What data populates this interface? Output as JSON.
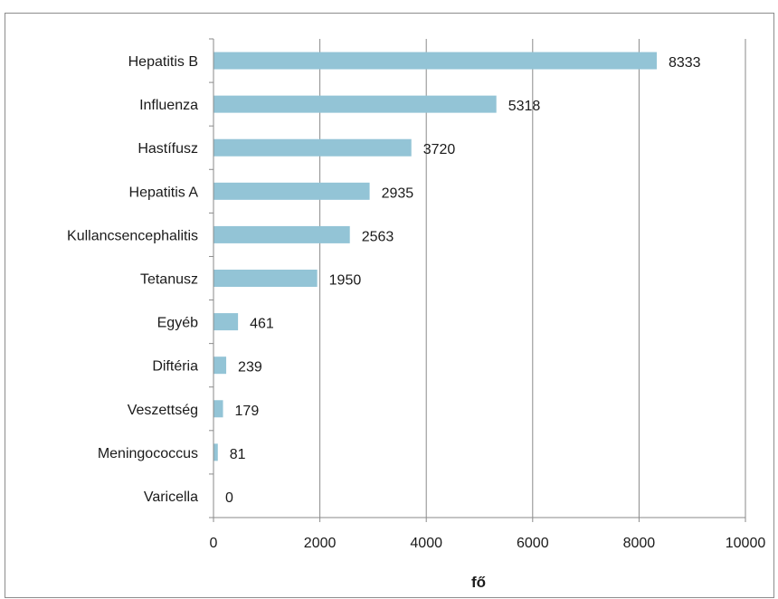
{
  "chart_data": {
    "type": "bar",
    "orientation": "horizontal",
    "categories": [
      "Hepatitis B",
      "Influenza",
      "Hastífusz",
      "Hepatitis A",
      "Kullancsencephalitis",
      "Tetanusz",
      "Egyéb",
      "Diftéria",
      "Veszettség",
      "Meningococcus",
      "Varicella"
    ],
    "values": [
      8333,
      5318,
      3720,
      2935,
      2563,
      1950,
      461,
      239,
      179,
      81,
      0
    ],
    "xlabel": "fő",
    "ylabel": "",
    "xlim": [
      0,
      10000
    ],
    "xticks": [
      "0",
      "2000",
      "4000",
      "6000",
      "8000",
      "10000"
    ],
    "grid": "vertical",
    "legend": "none",
    "bar_color": "#93c4d6",
    "data_labels": true
  }
}
